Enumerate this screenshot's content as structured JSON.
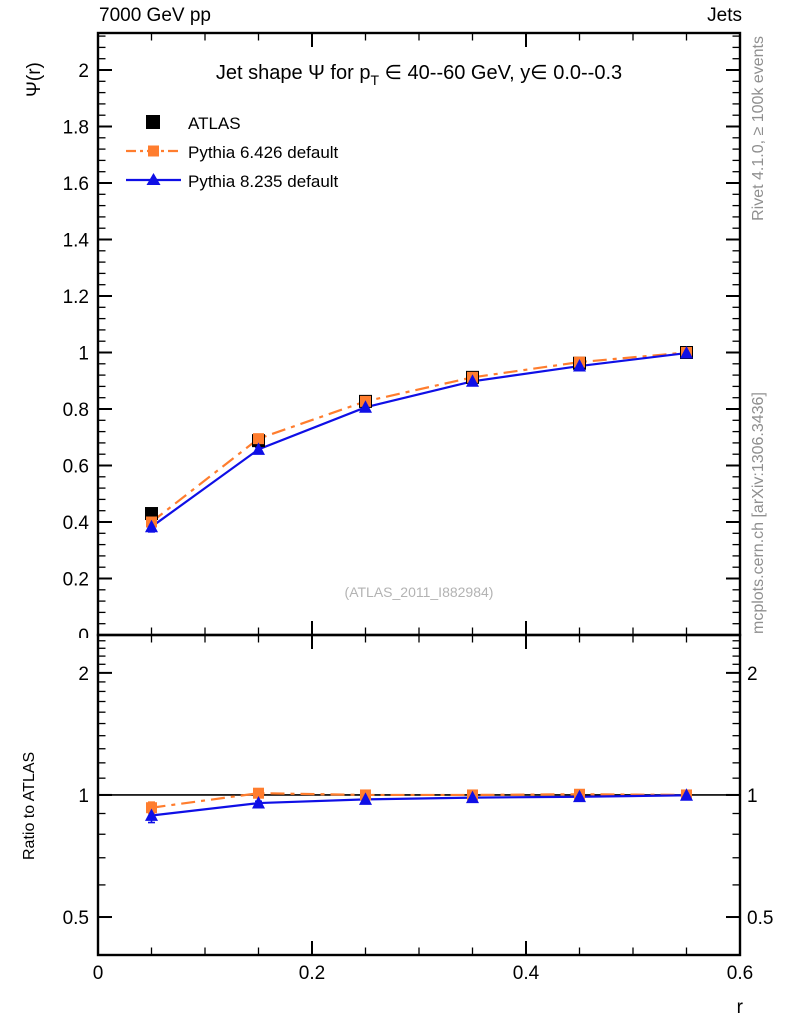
{
  "header": {
    "left": "7000 GeV pp",
    "right": "Jets"
  },
  "title": {
    "part1": "Jet shape Ψ for p",
    "sub": "T",
    "part2": " ∈ 40--60 GeV, y∈ 0.0--0.3"
  },
  "side_labels": {
    "top": "Rivet 4.1.0, ≥ 100k events",
    "bottom": "mcplots.cern.ch [arXiv:1306.3436]"
  },
  "watermark": "(ATLAS_2011_I882984)",
  "axes": {
    "main_ylabel": "Ψ(r)",
    "ratio_ylabel": "Ratio to ATLAS",
    "xlabel": "r"
  },
  "legend": {
    "items": [
      {
        "label": "ATLAS"
      },
      {
        "label": "Pythia 6.426 default"
      },
      {
        "label": "Pythia 8.235 default"
      }
    ]
  },
  "chart_data": {
    "type": "line",
    "title": "Jet shape Ψ for pT ∈ 40--60 GeV, y∈ 0.0--0.3",
    "xlabel": "r",
    "legend_position": "top-left",
    "grid": false,
    "x_axis": {
      "xlim": [
        0,
        0.6
      ],
      "ticks": [
        {
          "v": 0,
          "label": "0"
        },
        {
          "v": 0.2,
          "label": "0.2"
        },
        {
          "v": 0.4,
          "label": "0.4"
        },
        {
          "v": 0.6,
          "label": "0.6"
        }
      ],
      "minor_step": 0.05
    },
    "main_axis": {
      "scale": "linear",
      "ylim": [
        0,
        2.131
      ],
      "ylabel": "Ψ(r)",
      "yticks": [
        {
          "v": 0,
          "label": "0"
        },
        {
          "v": 0.2,
          "label": "0.2"
        },
        {
          "v": 0.4,
          "label": "0.4"
        },
        {
          "v": 0.6,
          "label": "0.6"
        },
        {
          "v": 0.8,
          "label": "0.8"
        },
        {
          "v": 1,
          "label": "1"
        },
        {
          "v": 1.2,
          "label": "1.2"
        },
        {
          "v": 1.4,
          "label": "1.4"
        },
        {
          "v": 1.6,
          "label": "1.6"
        },
        {
          "v": 1.8,
          "label": "1.8"
        },
        {
          "v": 2,
          "label": "2"
        }
      ],
      "y_minor_step": 0.04
    },
    "ratio_axis": {
      "scale": "log",
      "ylim": [
        0.403,
        2.48
      ],
      "ylabel": "Ratio to ATLAS",
      "refline": 1,
      "yticks": [
        {
          "v": 0.5,
          "label": "0.5"
        },
        {
          "v": 1,
          "label": "1"
        },
        {
          "v": 2,
          "label": "2"
        }
      ]
    },
    "x": [
      0.05,
      0.15,
      0.25,
      0.35,
      0.45,
      0.55
    ],
    "series": [
      {
        "name": "ATLAS",
        "color": "#000000",
        "marker": "square",
        "marker_size": 13,
        "line": "none",
        "values": [
          0.43,
          0.688,
          0.827,
          0.912,
          0.962,
          1.0
        ],
        "errors": [
          0.012,
          0.008,
          0.006,
          0.005,
          0.004,
          0.003
        ]
      },
      {
        "name": "Pythia 6.426 default",
        "color": "#ff7d2e",
        "marker": "square",
        "marker_size": 11,
        "line": "dashdot",
        "values": [
          0.4,
          0.695,
          0.827,
          0.912,
          0.966,
          1.0
        ],
        "errors": [
          0.015,
          0.008,
          0.005,
          0.004,
          0.004,
          0.003
        ],
        "ratio": [
          0.93,
          1.01,
          1.0,
          1.0,
          1.004,
          1.0
        ],
        "ratio_errors": [
          0.03,
          0.01,
          0.006,
          0.005,
          0.005,
          0.004
        ]
      },
      {
        "name": "Pythia 8.235 default",
        "color": "#0f0fe6",
        "marker": "triangle",
        "marker_size": 13,
        "line": "solid",
        "values": [
          0.383,
          0.657,
          0.806,
          0.898,
          0.952,
          0.998
        ],
        "errors": [
          0.018,
          0.008,
          0.005,
          0.004,
          0.004,
          0.003
        ],
        "ratio": [
          0.89,
          0.955,
          0.975,
          0.985,
          0.99,
          0.998
        ],
        "ratio_errors": [
          0.035,
          0.01,
          0.006,
          0.005,
          0.005,
          0.004
        ]
      }
    ]
  }
}
